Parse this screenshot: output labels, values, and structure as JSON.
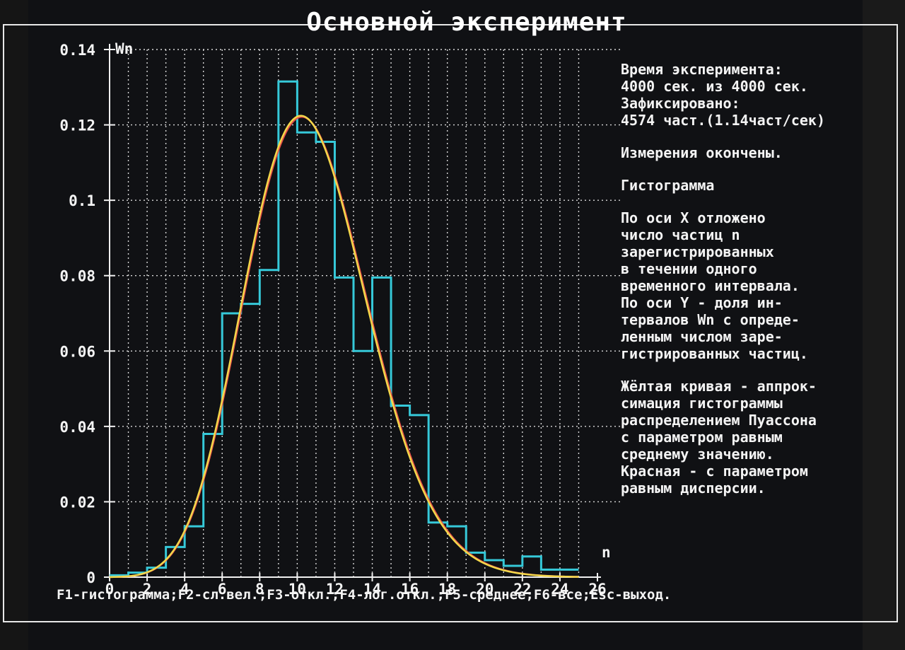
{
  "title": "Основной эксперимент",
  "info": {
    "lines_block1": [
      "Время эксперимента:",
      "4000 сек. из 4000 сек.",
      "Зафиксировано:",
      "4574 част.(1.14част/сек)"
    ],
    "status": "Измерения окончены.",
    "section": "Гистограмма",
    "lines_block2": [
      "По оси X отложено",
      "число частиц n",
      "зарегистрированных",
      "в течении одного",
      "временного интервала.",
      "По оси Y - доля ин-",
      "тервалов Wn с опреде-",
      "ленным числом заре-",
      "гистрированных частиц."
    ],
    "lines_block3": [
      "Жёлтая кривая - аппрок-",
      "симация гистограммы",
      "распределением Пуассона",
      "с параметром равным",
      "среднему значению.",
      "Красная - с параметром",
      "равным дисперсии."
    ]
  },
  "footer": "F1-гистограмма;F2-сл.вел.;F3-откл.;F4-лог.откл.;F5-среднее;F6-все;Esc-выход.",
  "colors": {
    "histogram": "#36c9d9",
    "poisson_mean": "#f2d84a",
    "poisson_variance": "#e8504a",
    "grid": "#d8d8d8",
    "axis": "#f0f0f0"
  },
  "chart_data": {
    "type": "histogram",
    "ylabel": "Wn",
    "xlabel": "n",
    "xlim": [
      0,
      26
    ],
    "ylim": [
      0,
      0.14
    ],
    "x_ticks": [
      0,
      2,
      4,
      6,
      8,
      10,
      12,
      14,
      16,
      18,
      20,
      22,
      24,
      26
    ],
    "y_ticks": [
      0,
      0.02,
      0.04,
      0.06,
      0.08,
      0.1,
      0.12,
      0.14
    ],
    "y_tick_labels": [
      "0",
      "0.02",
      "0.04",
      "0.06",
      "0.08",
      "0.1",
      "0.12",
      "0.14"
    ],
    "grid": true,
    "series": [
      {
        "type": "step",
        "color_key": "histogram",
        "bins_start": [
          0,
          1,
          2,
          3,
          4,
          5,
          6,
          7,
          8,
          9,
          10,
          11,
          12,
          13,
          14,
          15,
          16,
          17,
          18,
          19,
          20,
          21,
          22,
          23,
          24
        ],
        "values": [
          0.0005,
          0.0012,
          0.0025,
          0.008,
          0.0135,
          0.038,
          0.07,
          0.0725,
          0.0815,
          0.1315,
          0.118,
          0.1155,
          0.0795,
          0.06,
          0.0795,
          0.0455,
          0.043,
          0.0145,
          0.0135,
          0.0065,
          0.0045,
          0.003,
          0.0055,
          0.002,
          0.002
        ]
      },
      {
        "type": "line",
        "color_key": "poisson_mean",
        "poisson_lambda": 10.7,
        "x_range": [
          0,
          25
        ]
      },
      {
        "type": "line",
        "color_key": "poisson_variance",
        "poisson_lambda": 10.75,
        "x_range": [
          0,
          25
        ]
      }
    ]
  }
}
